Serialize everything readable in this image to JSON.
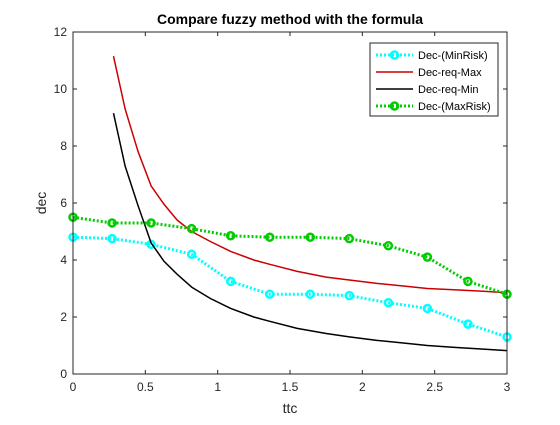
{
  "chart_data": {
    "type": "line",
    "title": "Compare fuzzy method with the formula",
    "xlabel": "ttc",
    "ylabel": "dec",
    "xlim": [
      0,
      3
    ],
    "ylim": [
      0,
      12
    ],
    "xticks": [
      0,
      0.5,
      1,
      1.5,
      2,
      2.5,
      3
    ],
    "xtick_labels": [
      "0",
      "0.5",
      "1",
      "1.5",
      "2",
      "2.5",
      "3"
    ],
    "yticks": [
      0,
      2,
      4,
      6,
      8,
      10,
      12
    ],
    "ytick_labels": [
      "0",
      "2",
      "4",
      "6",
      "8",
      "10",
      "12"
    ],
    "grid": false,
    "legend_position": "top-right",
    "series": [
      {
        "name": "Dec-(MinRisk)",
        "color": "#00ffff",
        "line_style": "dotted",
        "marker": "circle",
        "x": [
          0,
          0.27,
          0.54,
          0.82,
          1.09,
          1.36,
          1.64,
          1.91,
          2.18,
          2.45,
          2.73,
          3.0
        ],
        "y": [
          4.8,
          4.75,
          4.55,
          4.2,
          3.25,
          2.8,
          2.8,
          2.75,
          2.5,
          2.3,
          1.75,
          1.3
        ]
      },
      {
        "name": "Dec-req-Max",
        "color": "#cc0000",
        "line_style": "solid",
        "marker": "none",
        "x": [
          0.28,
          0.36,
          0.45,
          0.54,
          0.63,
          0.72,
          0.82,
          0.95,
          1.09,
          1.25,
          1.36,
          1.55,
          1.75,
          1.91,
          2.1,
          2.3,
          2.45,
          2.65,
          2.85,
          3.0
        ],
        "y": [
          11.15,
          9.3,
          7.8,
          6.6,
          5.95,
          5.4,
          5.0,
          4.65,
          4.3,
          4.0,
          3.85,
          3.6,
          3.4,
          3.3,
          3.18,
          3.08,
          3.0,
          2.95,
          2.9,
          2.85
        ]
      },
      {
        "name": "Dec-req-Min",
        "color": "#000000",
        "line_style": "solid",
        "marker": "none",
        "x": [
          0.28,
          0.36,
          0.45,
          0.54,
          0.63,
          0.72,
          0.82,
          0.95,
          1.09,
          1.25,
          1.36,
          1.55,
          1.75,
          1.91,
          2.1,
          2.3,
          2.45,
          2.65,
          2.85,
          3.0
        ],
        "y": [
          9.15,
          7.3,
          5.9,
          4.6,
          3.95,
          3.5,
          3.05,
          2.65,
          2.3,
          2.0,
          1.85,
          1.6,
          1.42,
          1.3,
          1.18,
          1.08,
          1.0,
          0.93,
          0.87,
          0.82
        ]
      },
      {
        "name": "Dec-(MaxRisk)",
        "color": "#00cc00",
        "line_style": "dotted",
        "marker": "circle",
        "x": [
          0,
          0.27,
          0.54,
          0.82,
          1.09,
          1.36,
          1.64,
          1.91,
          2.18,
          2.45,
          2.73,
          3.0
        ],
        "y": [
          5.5,
          5.3,
          5.3,
          5.1,
          4.85,
          4.8,
          4.8,
          4.75,
          4.5,
          4.1,
          3.25,
          2.8
        ]
      }
    ]
  }
}
